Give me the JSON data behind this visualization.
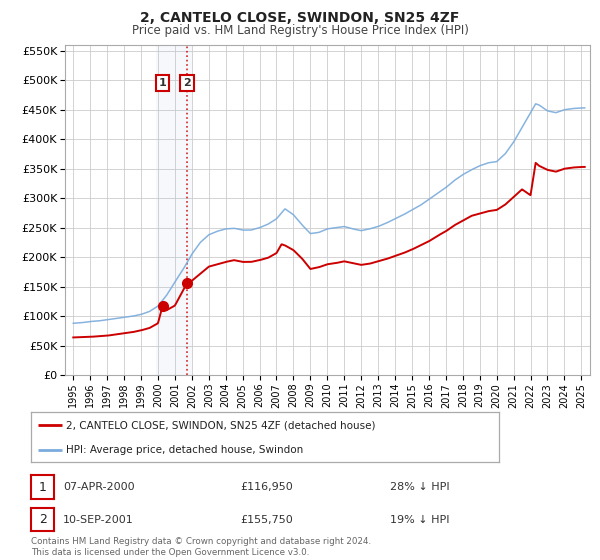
{
  "title": "2, CANTELO CLOSE, SWINDON, SN25 4ZF",
  "subtitle": "Price paid vs. HM Land Registry's House Price Index (HPI)",
  "ylim": [
    0,
    560000
  ],
  "xlim_start": 1994.5,
  "xlim_end": 2025.5,
  "yticks": [
    0,
    50000,
    100000,
    150000,
    200000,
    250000,
    300000,
    350000,
    400000,
    450000,
    500000,
    550000
  ],
  "ytick_labels": [
    "£0",
    "£50K",
    "£100K",
    "£150K",
    "£200K",
    "£250K",
    "£300K",
    "£350K",
    "£400K",
    "£450K",
    "£500K",
    "£550K"
  ],
  "xticks": [
    1995,
    1996,
    1997,
    1998,
    1999,
    2000,
    2001,
    2002,
    2003,
    2004,
    2005,
    2006,
    2007,
    2008,
    2009,
    2010,
    2011,
    2012,
    2013,
    2014,
    2015,
    2016,
    2017,
    2018,
    2019,
    2020,
    2021,
    2022,
    2023,
    2024,
    2025
  ],
  "red_line_color": "#cc0000",
  "blue_line_color": "#7aabdc",
  "grid_color": "#cccccc",
  "sale1_x": 2000.27,
  "sale1_y": 116950,
  "sale2_x": 2001.71,
  "sale2_y": 155750,
  "shade_x1": 1999.9,
  "shade_x2": 2002.0,
  "legend_label_red": "2, CANTELO CLOSE, SWINDON, SN25 4ZF (detached house)",
  "legend_label_blue": "HPI: Average price, detached house, Swindon",
  "table_row1_num": "1",
  "table_row1_date": "07-APR-2000",
  "table_row1_price": "£116,950",
  "table_row1_hpi": "28% ↓ HPI",
  "table_row2_num": "2",
  "table_row2_date": "10-SEP-2001",
  "table_row2_price": "£155,750",
  "table_row2_hpi": "19% ↓ HPI",
  "footnote1": "Contains HM Land Registry data © Crown copyright and database right 2024.",
  "footnote2": "This data is licensed under the Open Government Licence v3.0.",
  "background_color": "#ffffff"
}
